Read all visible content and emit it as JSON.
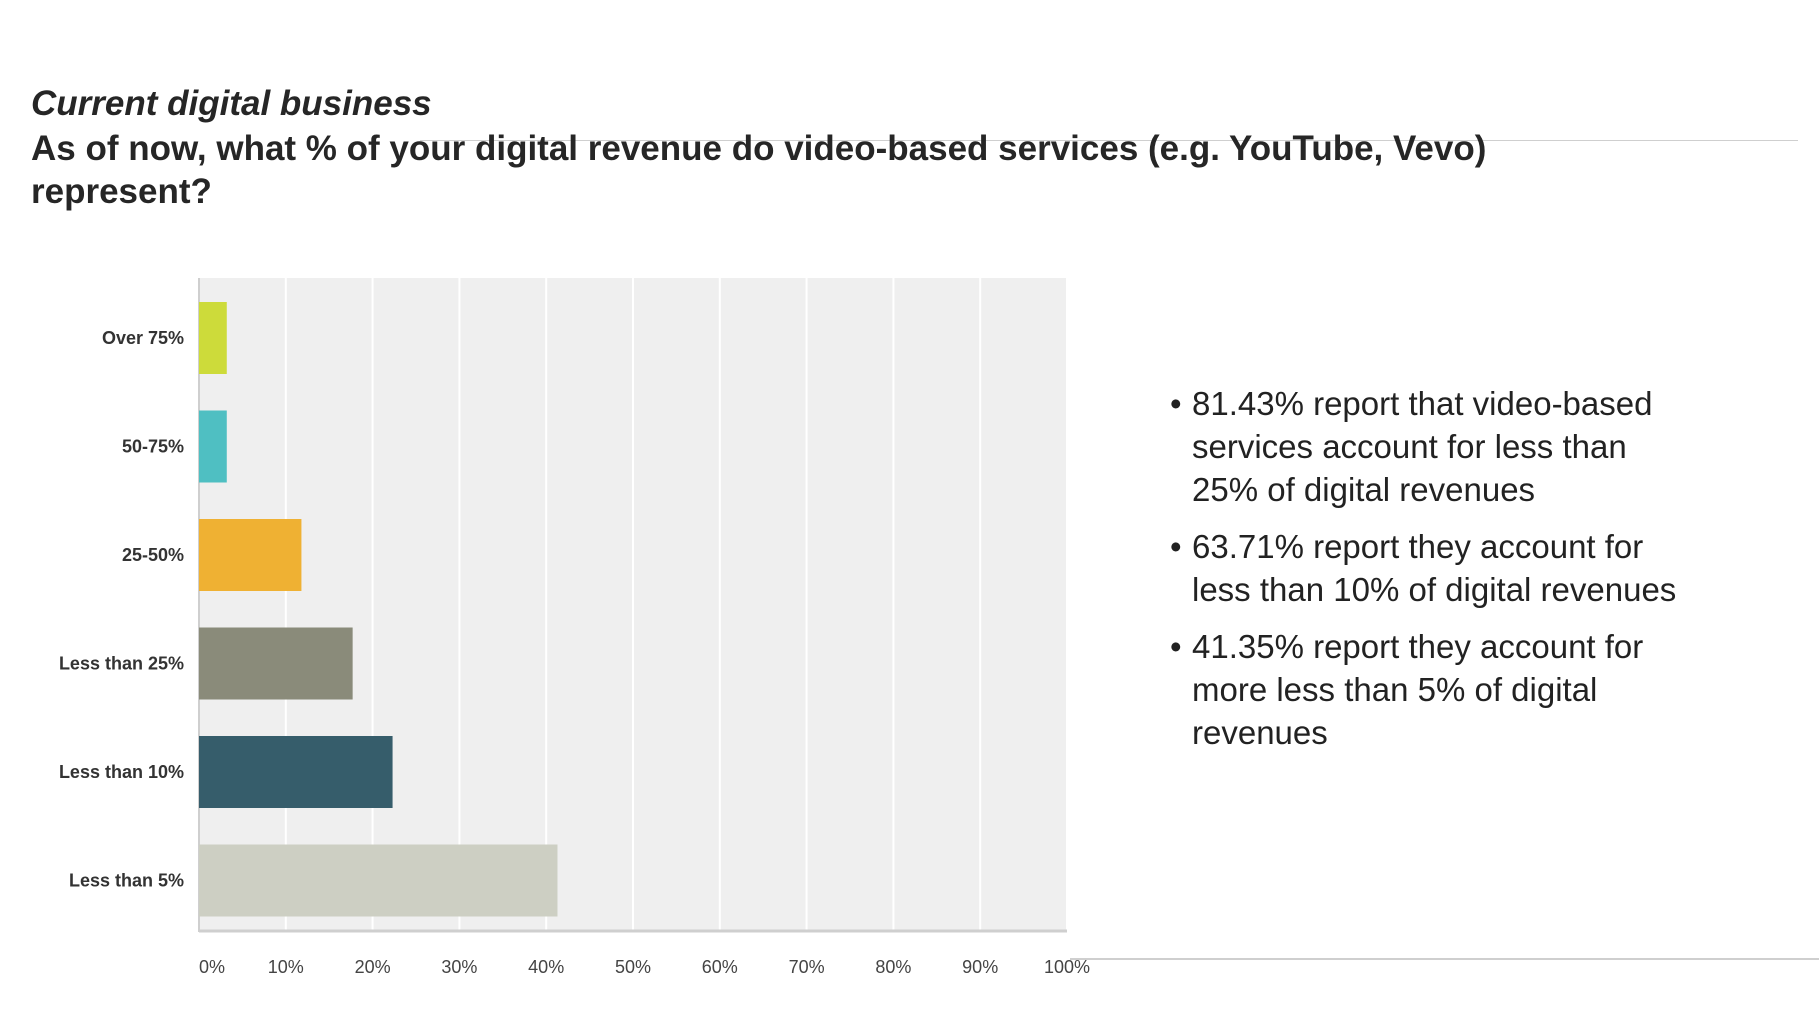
{
  "slide": {
    "subtitle": "Current digital business",
    "title": "As of now, what % of your digital revenue do video-based services (e.g. YouTube, Vevo) represent?"
  },
  "notes": [
    {
      "bullet": "•",
      "text": "81.43% report that video-based services account for less than 25% of digital revenues"
    },
    {
      "bullet": "•",
      "text": " 63.71% report they account for less than 10% of digital revenues"
    },
    {
      "bullet": "•",
      "text": "41.35% report they account for more less than 5% of digital revenues"
    }
  ],
  "chart_data": {
    "type": "bar",
    "orientation": "horizontal",
    "categories": [
      "Over 75%",
      "50-75%",
      "25-50%",
      "Less than 25%",
      "Less than 10%",
      "Less than 5%"
    ],
    "values": [
      3.2,
      3.2,
      11.8,
      17.7,
      22.3,
      41.3
    ],
    "colors": [
      "#cddb3a",
      "#4fbfc2",
      "#efb133",
      "#8a8b7a",
      "#365d6b",
      "#cdcfc3"
    ],
    "xlim": [
      0,
      100
    ],
    "xticks": [
      "0%",
      "10%",
      "20%",
      "30%",
      "40%",
      "50%",
      "60%",
      "70%",
      "80%",
      "90%",
      "100%"
    ],
    "grid": true,
    "plot_background": "#efefef",
    "title": "",
    "xlabel": "",
    "ylabel": ""
  }
}
